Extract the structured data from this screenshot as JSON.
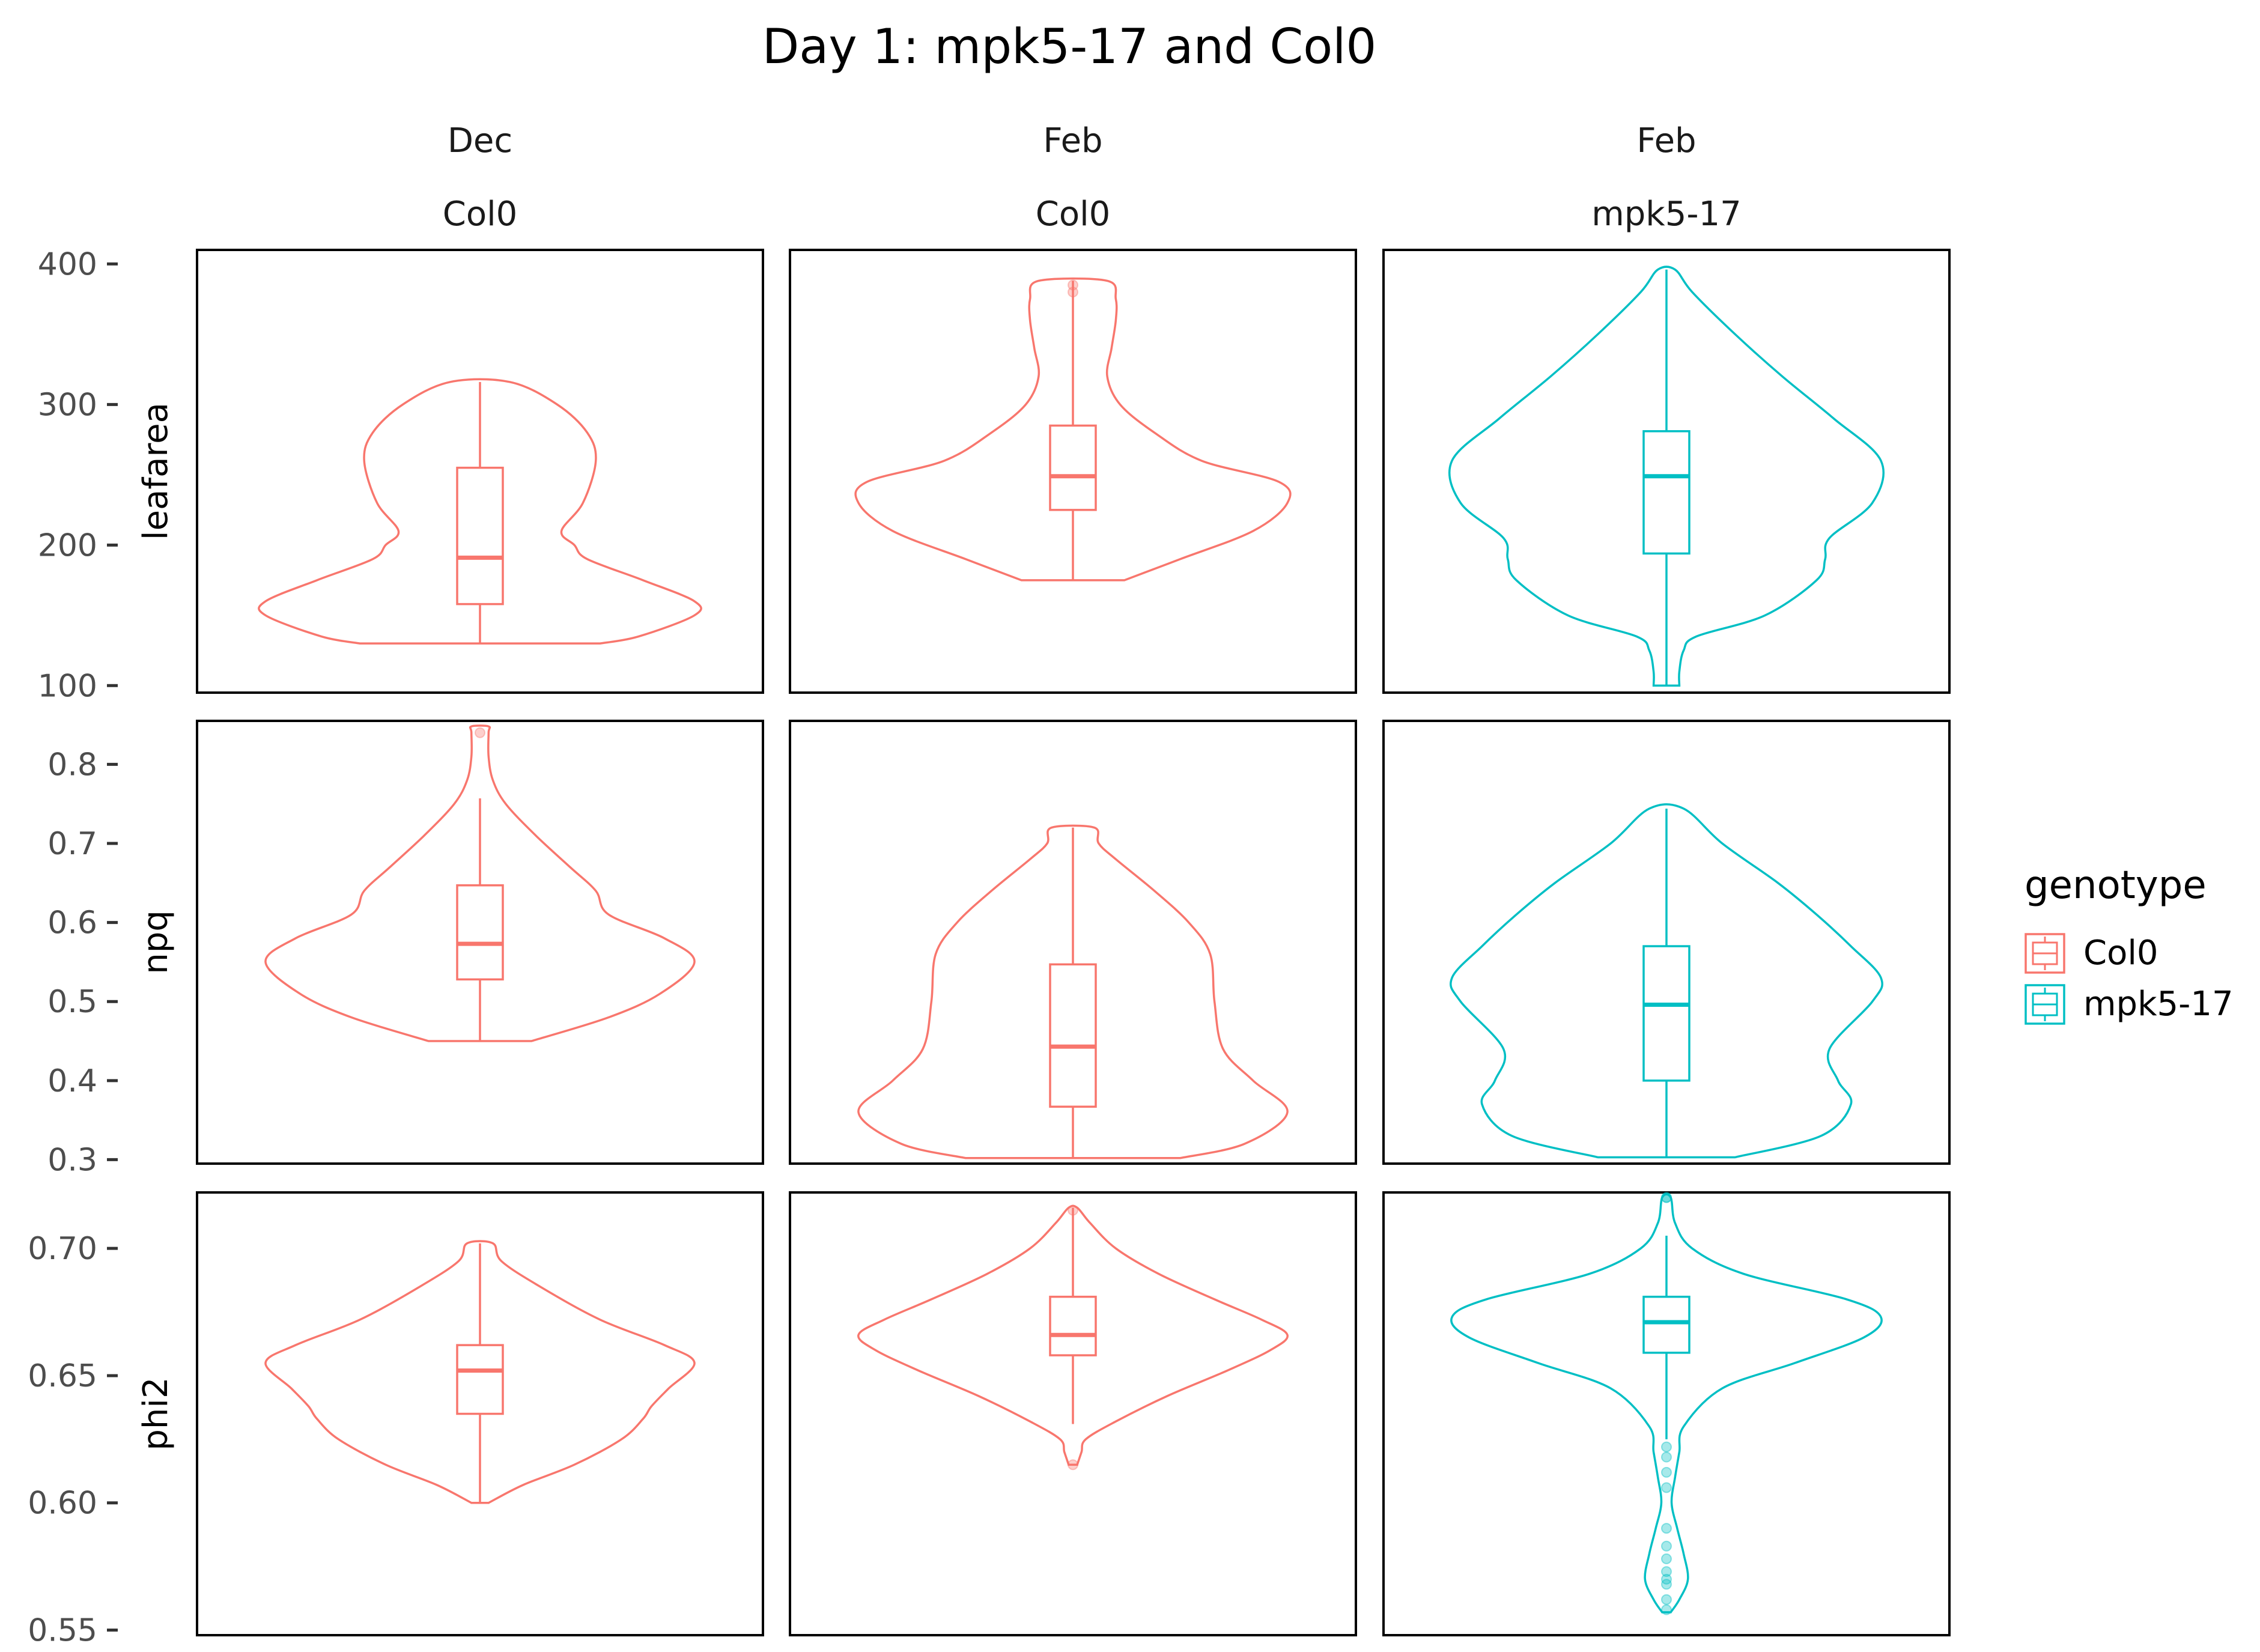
{
  "colors": {
    "Col0": "#F8766D",
    "mpk5-17": "#00BFC4"
  },
  "chart_data": {
    "type": "violin",
    "title": "Day 1: mpk5-17 and Col0",
    "legend": {
      "title": "genotype",
      "entries": [
        "Col0",
        "mpk5-17"
      ],
      "placement": "right"
    },
    "grid": false,
    "columns": [
      {
        "month": "Dec",
        "genotype": "Col0"
      },
      {
        "month": "Feb",
        "genotype": "Col0"
      },
      {
        "month": "Feb",
        "genotype": "mpk5-17"
      }
    ],
    "rows": [
      {
        "variable": "leafarea",
        "ylim": [
          95,
          410
        ],
        "ticks": [
          "100",
          "200",
          "300",
          "400"
        ],
        "tick_values": [
          100,
          200,
          300,
          400
        ],
        "panels": [
          {
            "box": {
              "min": 130,
              "q1": 158,
              "median": 191,
              "q3": 255,
              "max": 316
            },
            "outliers": [],
            "profile": [
              [
                130,
                0.28
              ],
              [
                135,
                0.37
              ],
              [
                150,
                0.5
              ],
              [
                160,
                0.5
              ],
              [
                175,
                0.38
              ],
              [
                190,
                0.25
              ],
              [
                200,
                0.22
              ],
              [
                210,
                0.19
              ],
              [
                230,
                0.24
              ],
              [
                260,
                0.27
              ],
              [
                280,
                0.25
              ],
              [
                300,
                0.18
              ],
              [
                316,
                0.07
              ]
            ]
          },
          {
            "box": {
              "min": 175,
              "q1": 225,
              "median": 249,
              "q3": 285,
              "max": 388
            },
            "outliers": [
              380,
              385
            ],
            "profile": [
              [
                175,
                0.12
              ],
              [
                190,
                0.25
              ],
              [
                210,
                0.42
              ],
              [
                230,
                0.5
              ],
              [
                245,
                0.48
              ],
              [
                260,
                0.3
              ],
              [
                280,
                0.19
              ],
              [
                300,
                0.11
              ],
              [
                320,
                0.08
              ],
              [
                340,
                0.09
              ],
              [
                360,
                0.1
              ],
              [
                375,
                0.1
              ],
              [
                388,
                0.08
              ]
            ]
          },
          {
            "box": {
              "min": 100,
              "q1": 194,
              "median": 249,
              "q3": 281,
              "max": 396
            },
            "outliers": [],
            "profile": [
              [
                100,
                0.03
              ],
              [
                110,
                0.03
              ],
              [
                125,
                0.04
              ],
              [
                135,
                0.07
              ],
              [
                150,
                0.23
              ],
              [
                175,
                0.35
              ],
              [
                190,
                0.37
              ],
              [
                205,
                0.38
              ],
              [
                230,
                0.48
              ],
              [
                260,
                0.5
              ],
              [
                290,
                0.39
              ],
              [
                320,
                0.27
              ],
              [
                350,
                0.16
              ],
              [
                380,
                0.06
              ],
              [
                396,
                0.02
              ]
            ]
          }
        ]
      },
      {
        "variable": "npq",
        "ylim": [
          0.295,
          0.855
        ],
        "ticks": [
          "0.3",
          "0.4",
          "0.5",
          "0.6",
          "0.7",
          "0.8"
        ],
        "tick_values": [
          0.3,
          0.4,
          0.5,
          0.6,
          0.7,
          0.8
        ],
        "panels": [
          {
            "box": {
              "min": 0.45,
              "q1": 0.528,
              "median": 0.573,
              "q3": 0.647,
              "max": 0.757
            },
            "outliers": [
              0.84
            ],
            "profile": [
              [
                0.45,
                0.12
              ],
              [
                0.48,
                0.3
              ],
              [
                0.51,
                0.42
              ],
              [
                0.55,
                0.5
              ],
              [
                0.58,
                0.43
              ],
              [
                0.61,
                0.3
              ],
              [
                0.64,
                0.27
              ],
              [
                0.67,
                0.21
              ],
              [
                0.71,
                0.13
              ],
              [
                0.75,
                0.06
              ],
              [
                0.78,
                0.03
              ],
              [
                0.81,
                0.02
              ],
              [
                0.84,
                0.02
              ],
              [
                0.848,
                0.02
              ]
            ]
          },
          {
            "box": {
              "min": 0.302,
              "q1": 0.367,
              "median": 0.443,
              "q3": 0.547,
              "max": 0.72
            },
            "outliers": [],
            "profile": [
              [
                0.302,
                0.25
              ],
              [
                0.32,
                0.4
              ],
              [
                0.36,
                0.5
              ],
              [
                0.4,
                0.42
              ],
              [
                0.44,
                0.35
              ],
              [
                0.5,
                0.33
              ],
              [
                0.56,
                0.32
              ],
              [
                0.6,
                0.27
              ],
              [
                0.64,
                0.19
              ],
              [
                0.68,
                0.1
              ],
              [
                0.7,
                0.06
              ],
              [
                0.72,
                0.05
              ]
            ]
          },
          {
            "box": {
              "min": 0.303,
              "q1": 0.4,
              "median": 0.496,
              "q3": 0.57,
              "max": 0.744
            },
            "outliers": [],
            "profile": [
              [
                0.303,
                0.16
              ],
              [
                0.33,
                0.36
              ],
              [
                0.37,
                0.43
              ],
              [
                0.4,
                0.4
              ],
              [
                0.44,
                0.38
              ],
              [
                0.5,
                0.48
              ],
              [
                0.53,
                0.5
              ],
              [
                0.57,
                0.43
              ],
              [
                0.61,
                0.35
              ],
              [
                0.65,
                0.26
              ],
              [
                0.7,
                0.13
              ],
              [
                0.744,
                0.04
              ]
            ]
          }
        ]
      },
      {
        "variable": "phi2",
        "ylim": [
          0.548,
          0.722
        ],
        "ticks": [
          "0.55",
          "0.60",
          "0.65",
          "0.70"
        ],
        "tick_values": [
          0.55,
          0.6,
          0.65,
          0.7
        ],
        "panels": [
          {
            "box": {
              "min": 0.6,
              "q1": 0.635,
              "median": 0.652,
              "q3": 0.662,
              "max": 0.702
            },
            "outliers": [],
            "profile": [
              [
                0.6,
                0.02
              ],
              [
                0.607,
                0.1
              ],
              [
                0.615,
                0.22
              ],
              [
                0.625,
                0.33
              ],
              [
                0.633,
                0.38
              ],
              [
                0.638,
                0.4
              ],
              [
                0.645,
                0.44
              ],
              [
                0.655,
                0.5
              ],
              [
                0.662,
                0.43
              ],
              [
                0.672,
                0.28
              ],
              [
                0.685,
                0.14
              ],
              [
                0.695,
                0.05
              ],
              [
                0.702,
                0.03
              ]
            ]
          },
          {
            "box": {
              "min": 0.631,
              "q1": 0.658,
              "median": 0.666,
              "q3": 0.681,
              "max": 0.716
            },
            "outliers": [
              0.615,
              0.715
            ],
            "profile": [
              [
                0.615,
                0.01
              ],
              [
                0.62,
                0.02
              ],
              [
                0.625,
                0.03
              ],
              [
                0.632,
                0.1
              ],
              [
                0.642,
                0.22
              ],
              [
                0.652,
                0.36
              ],
              [
                0.66,
                0.46
              ],
              [
                0.666,
                0.5
              ],
              [
                0.672,
                0.44
              ],
              [
                0.68,
                0.33
              ],
              [
                0.69,
                0.2
              ],
              [
                0.7,
                0.1
              ],
              [
                0.71,
                0.04
              ],
              [
                0.716,
                0.01
              ]
            ]
          },
          {
            "box": {
              "min": 0.625,
              "q1": 0.659,
              "median": 0.671,
              "q3": 0.681,
              "max": 0.705
            },
            "outliers": [
              0.72,
              0.72,
              0.622,
              0.618,
              0.612,
              0.606,
              0.59,
              0.583,
              0.578,
              0.573,
              0.57,
              0.568,
              0.562,
              0.558
            ],
            "profile": [
              [
                0.557,
                0.01
              ],
              [
                0.562,
                0.03
              ],
              [
                0.57,
                0.05
              ],
              [
                0.58,
                0.04
              ],
              [
                0.59,
                0.025
              ],
              [
                0.6,
                0.012
              ],
              [
                0.61,
                0.02
              ],
              [
                0.62,
                0.03
              ],
              [
                0.63,
                0.04
              ],
              [
                0.645,
                0.13
              ],
              [
                0.655,
                0.3
              ],
              [
                0.665,
                0.46
              ],
              [
                0.673,
                0.5
              ],
              [
                0.68,
                0.42
              ],
              [
                0.69,
                0.18
              ],
              [
                0.7,
                0.06
              ],
              [
                0.71,
                0.02
              ],
              [
                0.72,
                0.01
              ]
            ]
          }
        ]
      }
    ]
  }
}
